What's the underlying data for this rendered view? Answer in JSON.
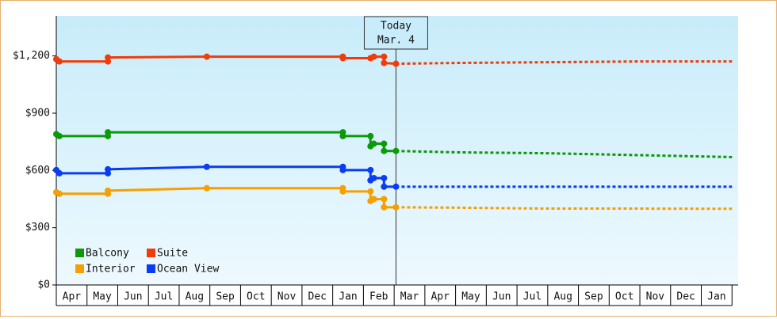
{
  "chart_data": {
    "type": "line",
    "ylim": [
      0,
      1410
    ],
    "yticks": [
      {
        "value": 0,
        "label": "$0"
      },
      {
        "value": 300,
        "label": "$300"
      },
      {
        "value": 600,
        "label": "$600"
      },
      {
        "value": 900,
        "label": "$900"
      },
      {
        "value": 1200,
        "label": "$1,200"
      }
    ],
    "xlim": [
      0,
      22.2
    ],
    "categories": [
      "Apr",
      "May",
      "Jun",
      "Jul",
      "Aug",
      "Sep",
      "Oct",
      "Nov",
      "Dec",
      "Jan",
      "Feb",
      "Mar",
      "Apr",
      "May",
      "Jun",
      "Jul",
      "Aug",
      "Sep",
      "Oct",
      "Nov",
      "Dec",
      "Jan"
    ],
    "today": {
      "x": 11.06,
      "label": "Today",
      "date": "Mar. 4"
    },
    "legend": "lower left",
    "series": [
      {
        "name": "Balcony",
        "color": "#0a9a0a",
        "x": [
          0,
          0.1,
          1.68,
          1.68,
          9.33,
          9.33,
          10.23,
          10.23,
          10.34,
          10.67,
          10.67,
          11.06,
          13,
          16,
          19,
          22
        ],
        "values": [
          790,
          780,
          780,
          800,
          800,
          780,
          780,
          727,
          740,
          740,
          702,
          702,
          695,
          690,
          680,
          670
        ]
      },
      {
        "name": "Suite",
        "color": "#f03c0a",
        "x": [
          0,
          0.1,
          1.68,
          1.68,
          4.9,
          9.33,
          9.33,
          10.23,
          10.34,
          10.67,
          10.67,
          11.06,
          13,
          16,
          19,
          22
        ],
        "values": [
          1183,
          1171,
          1171,
          1192,
          1196,
          1196,
          1188,
          1188,
          1196,
          1196,
          1163,
          1159,
          1163,
          1167,
          1171,
          1171
        ]
      },
      {
        "name": "Interior",
        "color": "#f5a000",
        "x": [
          0,
          0.1,
          1.68,
          1.68,
          4.9,
          9.33,
          9.33,
          10.23,
          10.23,
          10.34,
          10.67,
          10.67,
          11.06,
          13,
          16,
          19,
          22
        ],
        "values": [
          486,
          478,
          478,
          494,
          507,
          507,
          490,
          490,
          440,
          450,
          450,
          407,
          407,
          405,
          400,
          400,
          399
        ]
      },
      {
        "name": "Ocean View",
        "color": "#0a3cf5",
        "x": [
          0,
          0.1,
          1.68,
          1.68,
          4.9,
          9.33,
          9.33,
          10.23,
          10.23,
          10.34,
          10.67,
          10.67,
          11.06,
          13,
          16,
          19,
          22
        ],
        "values": [
          602,
          585,
          585,
          606,
          619,
          619,
          602,
          602,
          548,
          560,
          560,
          515,
          515,
          515,
          515,
          515,
          515
        ]
      }
    ]
  }
}
